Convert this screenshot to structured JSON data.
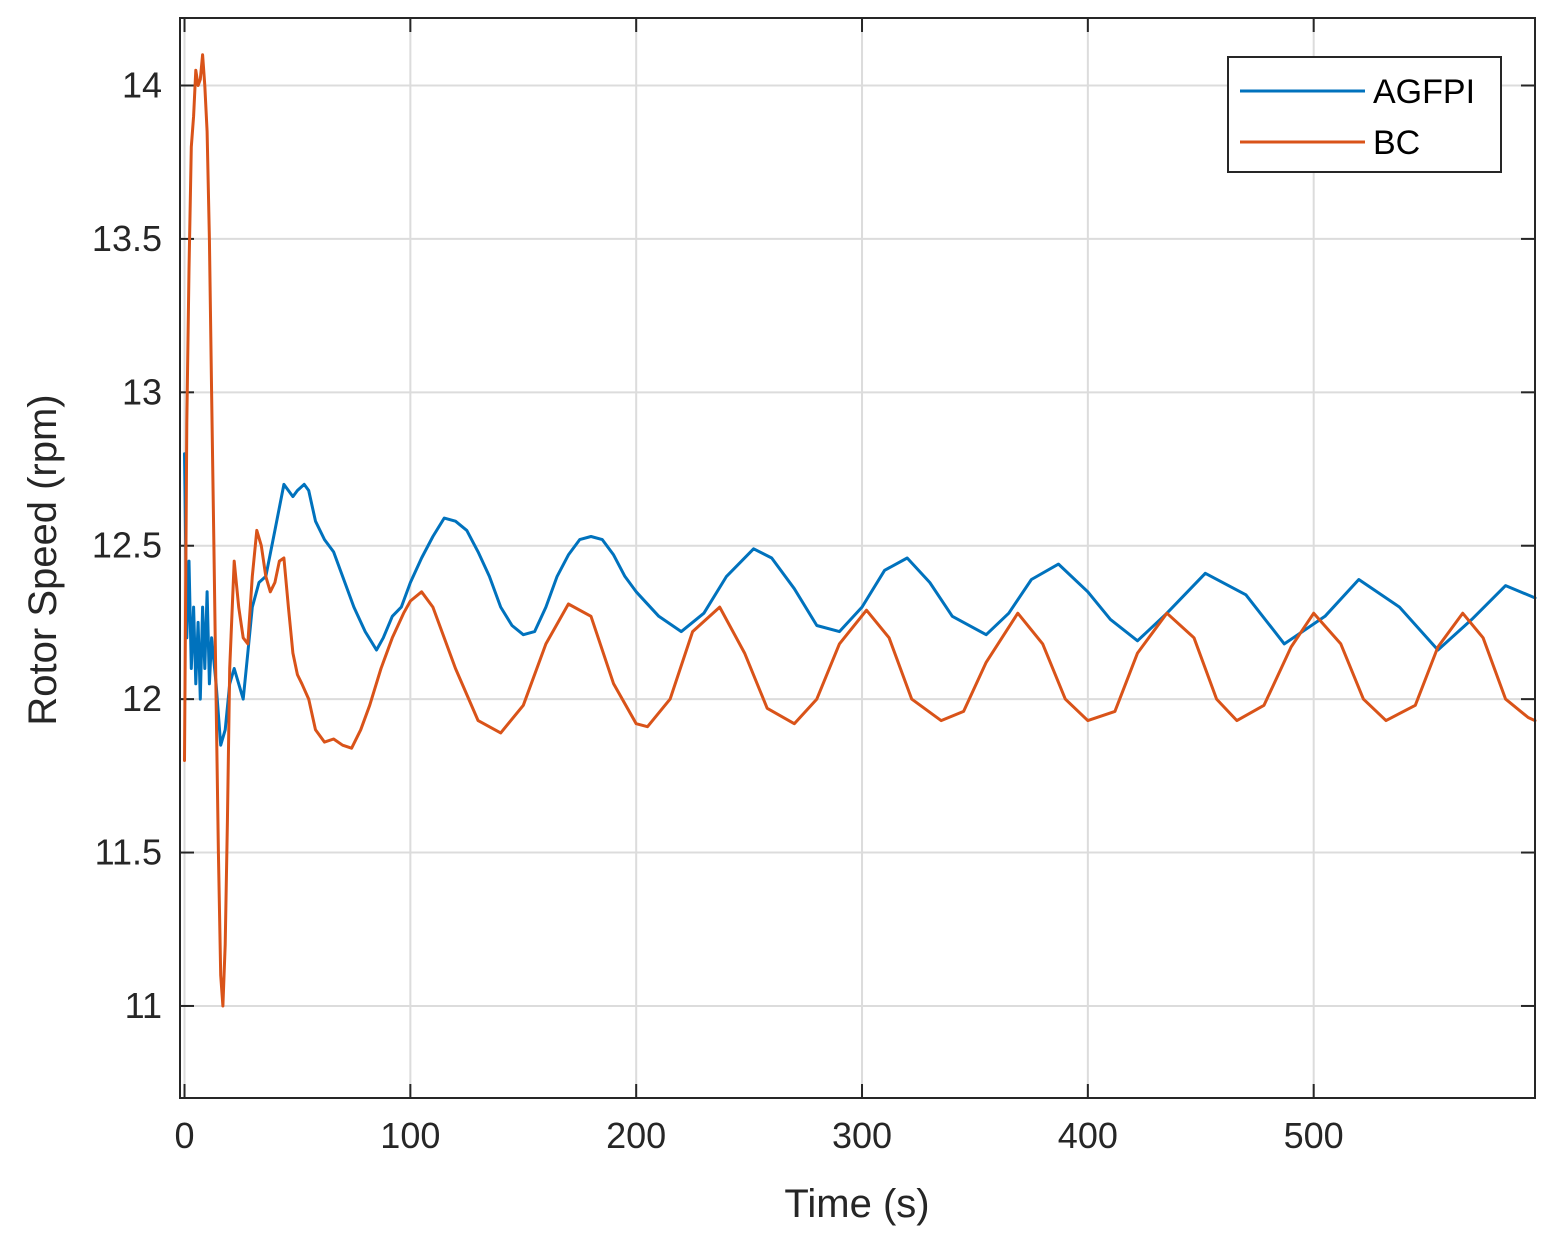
{
  "chart_data": {
    "type": "line",
    "title": "",
    "xlabel": "Time (s)",
    "ylabel": "Rotor Speed (rpm)",
    "xlim": [
      -2,
      598
    ],
    "ylim": [
      10.7,
      14.22
    ],
    "xticks": [
      0,
      100,
      200,
      300,
      400,
      500
    ],
    "xtick_labels": [
      "0",
      "100",
      "200",
      "300",
      "400",
      "500"
    ],
    "yticks": [
      11,
      11.5,
      12,
      12.5,
      13,
      13.5,
      14
    ],
    "ytick_labels": [
      "11",
      "11.5",
      "12",
      "12.5",
      "13",
      "13.5",
      "14"
    ],
    "grid": true,
    "legend_position": "top-right",
    "series": [
      {
        "name": "AGFPI",
        "color": "#0072BD",
        "x": [
          0,
          1,
          2,
          3,
          4,
          5,
          6,
          7,
          8,
          9,
          10,
          11,
          12,
          14,
          16,
          18,
          20,
          22,
          24,
          26,
          28,
          30,
          33,
          36,
          40,
          44,
          46,
          48,
          50,
          53,
          55,
          58,
          62,
          66,
          70,
          75,
          80,
          85,
          88,
          92,
          96,
          100,
          105,
          110,
          115,
          120,
          125,
          130,
          135,
          140,
          145,
          150,
          155,
          160,
          165,
          170,
          175,
          180,
          185,
          190,
          195,
          200,
          210,
          220,
          230,
          240,
          252,
          260,
          270,
          280,
          290,
          300,
          310,
          320,
          330,
          340,
          355,
          365,
          375,
          387,
          400,
          410,
          422,
          435,
          452,
          470,
          487,
          505,
          520,
          538,
          555,
          570,
          585,
          598
        ],
        "values": [
          12.8,
          12.2,
          12.45,
          12.1,
          12.3,
          12.05,
          12.25,
          12.0,
          12.3,
          12.1,
          12.35,
          12.05,
          12.2,
          12.05,
          11.85,
          11.9,
          12.05,
          12.1,
          12.05,
          12.0,
          12.15,
          12.3,
          12.38,
          12.4,
          12.55,
          12.7,
          12.68,
          12.66,
          12.68,
          12.7,
          12.68,
          12.58,
          12.52,
          12.48,
          12.4,
          12.3,
          12.22,
          12.16,
          12.2,
          12.27,
          12.3,
          12.38,
          12.46,
          12.53,
          12.59,
          12.58,
          12.55,
          12.48,
          12.4,
          12.3,
          12.24,
          12.21,
          12.22,
          12.3,
          12.4,
          12.47,
          12.52,
          12.53,
          12.52,
          12.47,
          12.4,
          12.35,
          12.27,
          12.22,
          12.28,
          12.4,
          12.49,
          12.46,
          12.36,
          12.24,
          12.22,
          12.3,
          12.42,
          12.46,
          12.38,
          12.27,
          12.21,
          12.28,
          12.39,
          12.44,
          12.35,
          12.26,
          12.19,
          12.28,
          12.41,
          12.34,
          12.18,
          12.27,
          12.39,
          12.3,
          12.16,
          12.26,
          12.37,
          12.33
        ]
      },
      {
        "name": "BC",
        "color": "#D95319",
        "x": [
          0,
          1,
          2,
          3,
          4,
          5,
          6,
          7,
          8,
          9,
          10,
          11,
          12,
          13,
          14,
          15,
          16,
          17,
          18,
          19,
          20,
          22,
          24,
          26,
          28,
          30,
          32,
          34,
          36,
          38,
          40,
          42,
          44,
          46,
          48,
          50,
          52,
          55,
          58,
          62,
          66,
          70,
          74,
          78,
          82,
          87,
          92,
          97,
          100,
          105,
          110,
          120,
          130,
          140,
          150,
          160,
          170,
          180,
          190,
          200,
          205,
          215,
          225,
          237,
          248,
          258,
          270,
          280,
          290,
          302,
          312,
          322,
          335,
          345,
          355,
          369,
          380,
          390,
          400,
          412,
          422,
          435,
          447,
          457,
          466,
          478,
          490,
          500,
          512,
          522,
          532,
          545,
          555,
          566,
          575,
          585,
          595,
          598
        ],
        "values": [
          11.8,
          12.9,
          13.4,
          13.8,
          13.9,
          14.05,
          14.0,
          14.02,
          14.1,
          14.0,
          13.85,
          13.5,
          13.0,
          12.5,
          12.0,
          11.5,
          11.1,
          11.0,
          11.2,
          11.6,
          12.1,
          12.45,
          12.3,
          12.2,
          12.18,
          12.4,
          12.55,
          12.5,
          12.4,
          12.35,
          12.38,
          12.45,
          12.46,
          12.3,
          12.15,
          12.08,
          12.05,
          12.0,
          11.9,
          11.86,
          11.87,
          11.85,
          11.84,
          11.9,
          11.98,
          12.1,
          12.2,
          12.28,
          12.32,
          12.35,
          12.3,
          12.1,
          11.93,
          11.89,
          11.98,
          12.18,
          12.31,
          12.27,
          12.05,
          11.92,
          11.91,
          12.0,
          12.22,
          12.3,
          12.15,
          11.97,
          11.92,
          12.0,
          12.18,
          12.29,
          12.2,
          12.0,
          11.93,
          11.96,
          12.12,
          12.28,
          12.18,
          12.0,
          11.93,
          11.96,
          12.15,
          12.28,
          12.2,
          12.0,
          11.93,
          11.98,
          12.17,
          12.28,
          12.18,
          12.0,
          11.93,
          11.98,
          12.17,
          12.28,
          12.2,
          12.0,
          11.94,
          11.93
        ]
      }
    ]
  }
}
